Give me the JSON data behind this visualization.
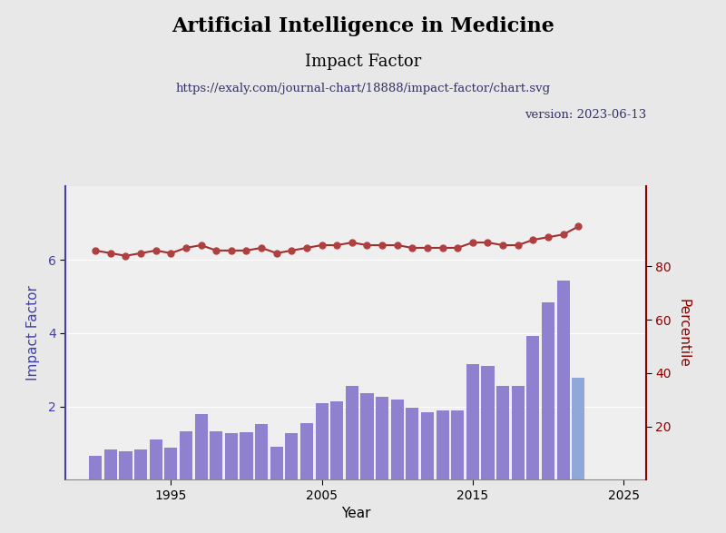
{
  "title": "Artificial Intelligence in Medicine",
  "subtitle": "Impact Factor",
  "url": "https://exaly.com/journal-chart/18888/impact-factor/chart.svg",
  "version": "version: 2023-06-13",
  "xlabel": "Year",
  "ylabel_left": "Impact Factor",
  "ylabel_right": "Percentile",
  "bg_color": "#e8e8e8",
  "plot_bg_color": "#efefef",
  "years": [
    1990,
    1991,
    1992,
    1993,
    1994,
    1995,
    1996,
    1997,
    1998,
    1999,
    2000,
    2001,
    2002,
    2003,
    2004,
    2005,
    2006,
    2007,
    2008,
    2009,
    2010,
    2011,
    2012,
    2013,
    2014,
    2015,
    2016,
    2017,
    2018,
    2019,
    2020,
    2021,
    2022
  ],
  "impact_factor": [
    0.65,
    0.82,
    0.78,
    0.82,
    1.1,
    0.88,
    1.32,
    1.78,
    1.32,
    1.27,
    1.3,
    1.52,
    0.9,
    1.27,
    1.55,
    2.09,
    2.13,
    2.56,
    2.35,
    2.25,
    2.2,
    1.97,
    1.84,
    1.89,
    1.9,
    3.15,
    3.1,
    2.57,
    2.55,
    3.93,
    4.84,
    5.43,
    2.79
  ],
  "percentile": [
    86,
    85,
    84,
    85,
    86,
    85,
    87,
    88,
    86,
    86,
    86,
    87,
    85,
    86,
    87,
    88,
    88,
    89,
    88,
    88,
    88,
    87,
    87,
    87,
    87,
    89,
    89,
    88,
    88,
    90,
    91,
    92,
    95
  ],
  "bar_color": "#9080d0",
  "bar_color_last": "#90a8d8",
  "line_color": "#a03030",
  "marker_color": "#b04040",
  "title_fontsize": 16,
  "subtitle_fontsize": 13,
  "url_fontsize": 9.5,
  "version_fontsize": 9.5,
  "axis_label_color_left": "#4040aa",
  "axis_label_fontsize": 11,
  "tick_fontsize": 10,
  "ylim_left": [
    0,
    8
  ],
  "ylim_right": [
    0,
    110
  ],
  "yticks_left": [
    2,
    4,
    6
  ],
  "yticks_right": [
    20,
    40,
    60,
    80
  ],
  "xticks": [
    1995,
    2005,
    2015,
    2025
  ],
  "xlim": [
    1988.0,
    2026.5
  ]
}
